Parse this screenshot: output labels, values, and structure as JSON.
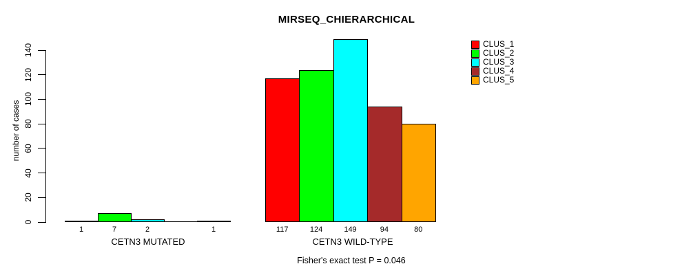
{
  "title": "MIRSEQ_CHIERARCHICAL",
  "footer": "Fisher's exact test P = 0.046",
  "colors": {
    "background": "#ffffff",
    "axis": "#000000",
    "clus_1": "#ff0000",
    "clus_2": "#00ff00",
    "clus_3": "#00ffff",
    "clus_4": "#a52a2a",
    "clus_5": "#ffa500"
  },
  "chart_data": {
    "type": "bar",
    "title": "MIRSEQ_CHIERARCHICAL",
    "xlabel": "",
    "ylabel": "number of cases",
    "ylim": [
      0,
      140
    ],
    "yticks": [
      0,
      20,
      40,
      60,
      80,
      100,
      120,
      140
    ],
    "grid": false,
    "legend_position": "top-right",
    "categories": [
      "CETN3 MUTATED",
      "CETN3 WILD-TYPE"
    ],
    "series": [
      {
        "name": "CLUS_1",
        "color": "#ff0000",
        "values": [
          1,
          117
        ]
      },
      {
        "name": "CLUS_2",
        "color": "#00ff00",
        "values": [
          7,
          124
        ]
      },
      {
        "name": "CLUS_3",
        "color": "#00ffff",
        "values": [
          2,
          149
        ]
      },
      {
        "name": "CLUS_4",
        "color": "#a52a2a",
        "values": [
          0,
          94
        ]
      },
      {
        "name": "CLUS_5",
        "color": "#ffa500",
        "values": [
          1,
          80
        ]
      }
    ],
    "bar_value_labels": [
      [
        "1",
        "7",
        "2",
        "",
        "1"
      ],
      [
        "117",
        "124",
        "149",
        "94",
        "80"
      ]
    ],
    "annotation": "Fisher's exact test P = 0.046"
  }
}
